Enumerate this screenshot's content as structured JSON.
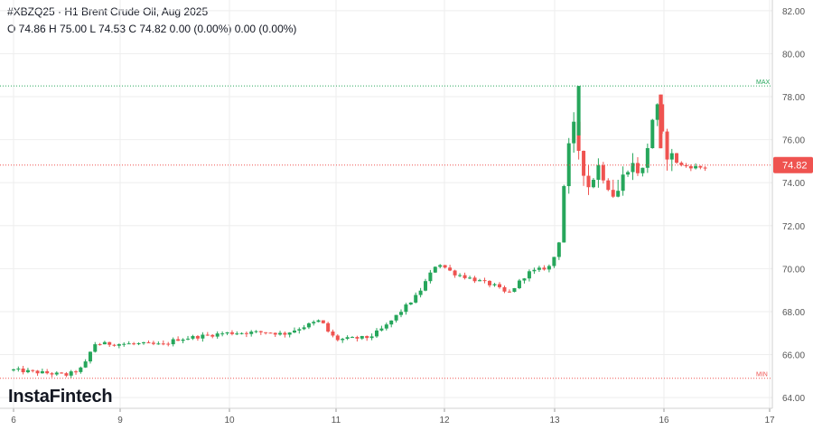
{
  "header": {
    "title": "#XBZQ25 · H1 Brent Crude Oil, Aug 2025",
    "ohlc": "O 74.86 H 75.00 L 74.53 C 74.82 0.00 (0.00%) 0.00 (0.00%)"
  },
  "logo": "InstaFintech",
  "colors": {
    "up": "#26a65b",
    "down": "#ef5350",
    "grid": "#eeeeee",
    "max_line": "#26a65b",
    "min_line": "#ef5350",
    "price_badge": "#ef5350"
  },
  "chart_data": {
    "type": "candlestick",
    "ylim": [
      63.5,
      82.5
    ],
    "y_ticks": [
      "82.00",
      "80.00",
      "78.00",
      "76.00",
      "74.00",
      "72.00",
      "70.00",
      "68.00",
      "66.00",
      "64.00"
    ],
    "x_ticks": [
      {
        "label": "6",
        "t": 0
      },
      {
        "label": "9",
        "t": 1
      },
      {
        "label": "10",
        "t": 2
      },
      {
        "label": "11",
        "t": 3
      },
      {
        "label": "12",
        "t": 4
      },
      {
        "label": "13",
        "t": 5
      },
      {
        "label": "16",
        "t": 6
      },
      {
        "label": "17",
        "t": 7
      }
    ],
    "max": {
      "label": "MAX",
      "value": 78.5
    },
    "min": {
      "label": "MIN",
      "value": 64.9
    },
    "last_price": {
      "label": "74.82",
      "value": 74.82
    },
    "anchors": [
      [
        0,
        65.3
      ],
      [
        0.55,
        65.05
      ],
      [
        0.7,
        65.4
      ],
      [
        0.8,
        66.5
      ],
      [
        1.2,
        66.5
      ],
      [
        1.45,
        66.45
      ],
      [
        1.55,
        66.7
      ],
      [
        2.0,
        67.0
      ],
      [
        2.4,
        67.05
      ],
      [
        2.55,
        66.95
      ],
      [
        2.9,
        67.6
      ],
      [
        2.98,
        67.0
      ],
      [
        3.05,
        66.7
      ],
      [
        3.35,
        66.8
      ],
      [
        3.5,
        67.3
      ],
      [
        3.8,
        68.8
      ],
      [
        3.98,
        70.3
      ],
      [
        4.12,
        69.8
      ],
      [
        4.5,
        69.2
      ],
      [
        4.62,
        68.8
      ],
      [
        4.8,
        69.8
      ],
      [
        5.0,
        70.1
      ],
      [
        5.08,
        71.0
      ],
      [
        5.15,
        75.0
      ],
      [
        5.22,
        76.5
      ],
      [
        5.35,
        73.8
      ],
      [
        5.45,
        74.8
      ],
      [
        5.6,
        73.3
      ],
      [
        5.72,
        74.9
      ],
      [
        5.85,
        74.5
      ],
      [
        5.97,
        77.8
      ],
      [
        6.05,
        75.5
      ],
      [
        6.2,
        74.8
      ],
      [
        6.4,
        74.7
      ]
    ],
    "last_t": 6.4
  }
}
